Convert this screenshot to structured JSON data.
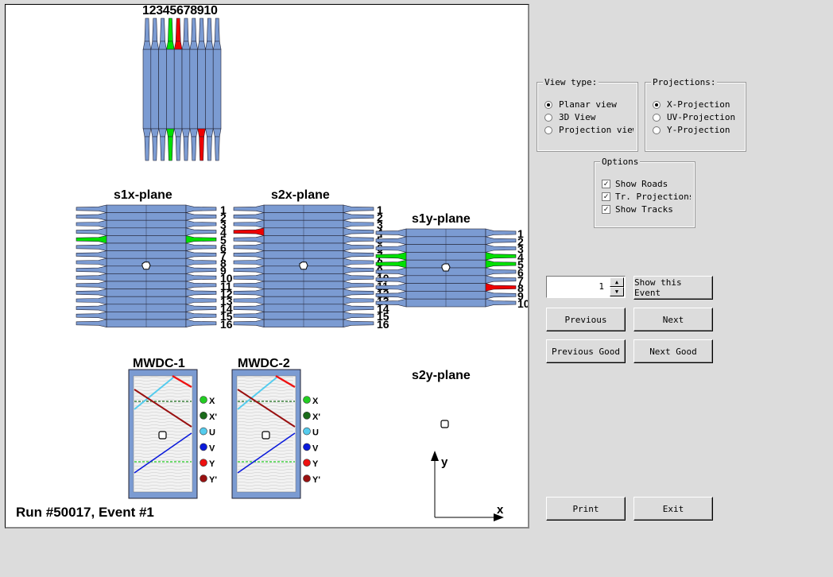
{
  "canvas": {
    "top_detector_numbers": "12345678910",
    "planes": {
      "s1x": "s1x-plane",
      "s2x": "s2x-plane",
      "s1y": "s1y-plane",
      "s2y": "s2y-plane"
    },
    "x_plane_numbers": [
      "1",
      "2",
      "3",
      "4",
      "5",
      "6",
      "7",
      "8",
      "9",
      "10",
      "11",
      "12",
      "13",
      "14",
      "15",
      "16"
    ],
    "mwdc": {
      "chamber1": "MWDC-1",
      "chamber2": "MWDC-2",
      "legend": [
        {
          "label": "X",
          "color": "#22cc22"
        },
        {
          "label": "X'",
          "color": "#1a6b1a"
        },
        {
          "label": "U",
          "color": "#55ccee"
        },
        {
          "label": "V",
          "color": "#0a1adb"
        },
        {
          "label": "Y",
          "color": "#ee1111"
        },
        {
          "label": "Y'",
          "color": "#991111"
        }
      ]
    },
    "axes": {
      "x": "x",
      "y": "y"
    },
    "run_label": "Run #50017, Event #1",
    "colors": {
      "paddle": "#7b9bd2",
      "hit_green": "#00e000",
      "hit_red": "#ee0000"
    }
  },
  "view_type": {
    "legend": "View type:",
    "options": [
      "Planar view",
      "3D View",
      "Projection view"
    ],
    "selected": 0
  },
  "projections": {
    "legend": "Projections:",
    "options": [
      "X-Projection",
      "UV-Projection",
      "Y-Projection"
    ],
    "selected": 0
  },
  "options": {
    "legend": "Options",
    "items": [
      {
        "label": "Show Roads",
        "checked": true
      },
      {
        "label": "Tr. Projections",
        "checked": true
      },
      {
        "label": "Show Tracks",
        "checked": true
      }
    ]
  },
  "event": {
    "number": "1",
    "show_label": "Show this Event",
    "previous": "Previous",
    "next": "Next",
    "previous_good": "Previous Good",
    "next_good": "Next Good"
  },
  "footer": {
    "print": "Print",
    "exit": "Exit"
  }
}
